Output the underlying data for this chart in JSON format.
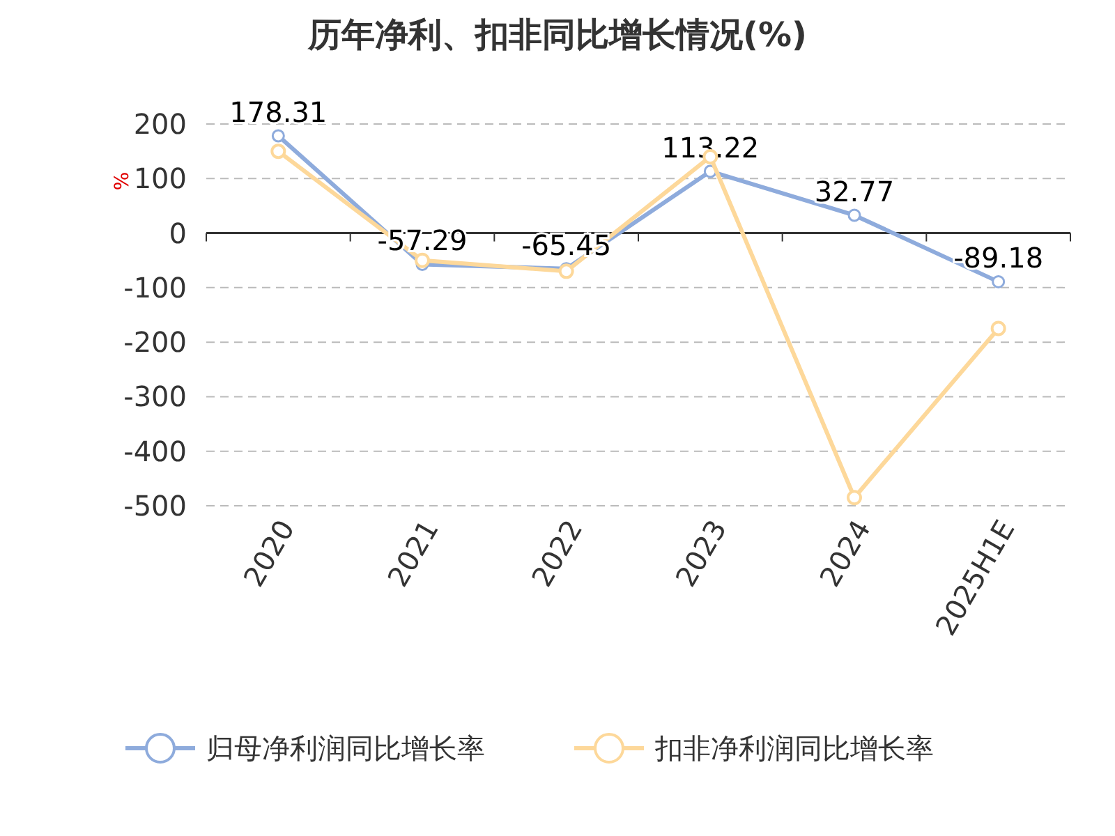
{
  "chart_data": {
    "type": "line",
    "title": "历年净利、扣非同比增长情况(%)",
    "ylabel": "%",
    "categories": [
      "2020",
      "2021",
      "2022",
      "2023",
      "2024",
      "2025H1E"
    ],
    "series": [
      {
        "name": "归母净利润同比增长率",
        "color": "#8eabdc",
        "values": [
          178.31,
          -57.29,
          -65.45,
          113.22,
          32.77,
          -89.18
        ],
        "value_labels": [
          "178.31",
          "-57.29",
          "-65.45",
          "113.22",
          "32.77",
          "-89.18"
        ]
      },
      {
        "name": "扣非净利润同比增长率",
        "color": "#fdd89a",
        "values": [
          150,
          -50,
          -70,
          140,
          -485,
          -175
        ]
      }
    ],
    "ylim": [
      -500,
      200
    ],
    "yticks": [
      -500,
      -400,
      -300,
      -200,
      -100,
      0,
      100,
      200
    ],
    "grid": "y",
    "legend": "bottom",
    "marker": "circle",
    "line_style": "solid"
  }
}
